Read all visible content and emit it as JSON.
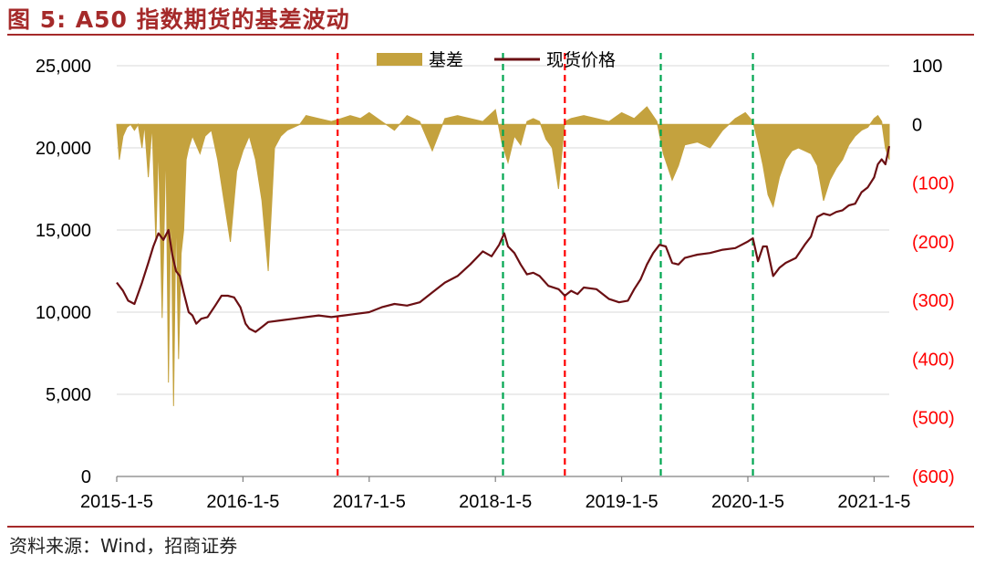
{
  "header": {
    "title": "图 5:  A50 指数期货的基差波动"
  },
  "footer": {
    "source": "资料来源：Wind，招商证券"
  },
  "chart_data": {
    "type": "line",
    "legend": [
      {
        "name": "基差",
        "kind": "area",
        "color": "#C4A23E"
      },
      {
        "name": "现货价格",
        "kind": "line",
        "color": "#6B0F13"
      }
    ],
    "legend_position": "top-center",
    "y_left": {
      "ylim": [
        0,
        25000
      ],
      "ticks": [
        "25,000",
        "20,000",
        "15,000",
        "10,000",
        "5,000",
        "0"
      ],
      "tick_values": [
        25000,
        20000,
        15000,
        10000,
        5000,
        0
      ],
      "color": "#000000"
    },
    "y_right": {
      "ylim": [
        -600,
        100
      ],
      "ticks": [
        "100",
        "0",
        "(100)",
        "(200)",
        "(300)",
        "(400)",
        "(500)",
        "(600)"
      ],
      "tick_values": [
        100,
        0,
        -100,
        -200,
        -300,
        -400,
        -500,
        -600
      ],
      "negative_color": "#FF0000"
    },
    "x_axis": {
      "ticks": [
        "2015-1-5",
        "2016-1-5",
        "2017-1-5",
        "2018-1-5",
        "2019-1-5",
        "2020-1-5",
        "2021-1-5"
      ],
      "tick_values": [
        2015.0,
        2016.0,
        2017.0,
        2018.0,
        2019.0,
        2020.0,
        2021.0
      ],
      "range": [
        2015.0,
        2021.12
      ]
    },
    "grid": "horizontal",
    "vlines": [
      {
        "x": 2016.75,
        "color": "#FF0000"
      },
      {
        "x": 2018.06,
        "color": "#00A651"
      },
      {
        "x": 2018.55,
        "color": "#FF0000"
      },
      {
        "x": 2019.31,
        "color": "#00A651"
      },
      {
        "x": 2020.04,
        "color": "#00A651"
      }
    ],
    "series": [
      {
        "name": "现货价格",
        "axis": "left",
        "x": [
          2015.0,
          2015.05,
          2015.09,
          2015.14,
          2015.2,
          2015.25,
          2015.29,
          2015.33,
          2015.37,
          2015.41,
          2015.44,
          2015.47,
          2015.5,
          2015.53,
          2015.57,
          2015.6,
          2015.63,
          2015.67,
          2015.72,
          2015.78,
          2015.83,
          2015.88,
          2015.93,
          2015.98,
          2016.02,
          2016.05,
          2016.1,
          2016.15,
          2016.2,
          2016.3,
          2016.4,
          2016.5,
          2016.6,
          2016.7,
          2016.8,
          2016.9,
          2017.0,
          2017.1,
          2017.2,
          2017.3,
          2017.4,
          2017.5,
          2017.6,
          2017.7,
          2017.8,
          2017.9,
          2017.97,
          2018.03,
          2018.07,
          2018.1,
          2018.15,
          2018.2,
          2018.25,
          2018.3,
          2018.35,
          2018.42,
          2018.5,
          2018.55,
          2018.6,
          2018.65,
          2018.7,
          2018.8,
          2018.9,
          2018.98,
          2019.05,
          2019.1,
          2019.15,
          2019.2,
          2019.25,
          2019.3,
          2019.35,
          2019.4,
          2019.45,
          2019.5,
          2019.6,
          2019.7,
          2019.8,
          2019.9,
          2020.0,
          2020.04,
          2020.08,
          2020.12,
          2020.15,
          2020.2,
          2020.25,
          2020.3,
          2020.38,
          2020.45,
          2020.5,
          2020.55,
          2020.6,
          2020.65,
          2020.7,
          2020.75,
          2020.8,
          2020.85,
          2020.9,
          2020.95,
          2021.0,
          2021.03,
          2021.06,
          2021.09,
          2021.12
        ],
        "values": [
          11800,
          11300,
          10700,
          10500,
          11800,
          13000,
          14000,
          14800,
          14400,
          15000,
          13500,
          12500,
          12200,
          11200,
          10000,
          9800,
          9300,
          9600,
          9700,
          10400,
          11000,
          11000,
          10900,
          10300,
          9300,
          9000,
          8800,
          9100,
          9400,
          9500,
          9600,
          9700,
          9800,
          9700,
          9800,
          9900,
          10000,
          10300,
          10500,
          10400,
          10600,
          11200,
          11800,
          12200,
          12900,
          13700,
          13400,
          14100,
          14800,
          14000,
          13600,
          12900,
          12300,
          12400,
          12200,
          11600,
          11400,
          11000,
          11300,
          11100,
          11500,
          11400,
          10800,
          10600,
          10700,
          11400,
          12000,
          12900,
          13600,
          14100,
          14000,
          13000,
          12900,
          13300,
          13500,
          13600,
          13800,
          13900,
          14300,
          14500,
          13100,
          14000,
          14000,
          12200,
          12700,
          13000,
          13300,
          14100,
          14600,
          15800,
          16000,
          15900,
          16100,
          16200,
          16500,
          16600,
          17300,
          17600,
          18200,
          19000,
          19300,
          19000,
          20100
        ]
      },
      {
        "name": "基差",
        "axis": "right",
        "x": [
          2015.0,
          2015.02,
          2015.05,
          2015.08,
          2015.11,
          2015.14,
          2015.17,
          2015.2,
          2015.22,
          2015.25,
          2015.28,
          2015.31,
          2015.33,
          2015.36,
          2015.39,
          2015.41,
          2015.43,
          2015.45,
          2015.47,
          2015.49,
          2015.51,
          2015.53,
          2015.55,
          2015.57,
          2015.6,
          2015.63,
          2015.66,
          2015.7,
          2015.75,
          2015.8,
          2015.85,
          2015.9,
          2015.95,
          2016.0,
          2016.05,
          2016.1,
          2016.15,
          2016.2,
          2016.25,
          2016.3,
          2016.35,
          2016.4,
          2016.45,
          2016.5,
          2016.6,
          2016.7,
          2016.78,
          2016.85,
          2016.93,
          2017.0,
          2017.1,
          2017.2,
          2017.3,
          2017.4,
          2017.5,
          2017.6,
          2017.7,
          2017.8,
          2017.9,
          2017.95,
          2018.0,
          2018.05,
          2018.1,
          2018.15,
          2018.2,
          2018.25,
          2018.3,
          2018.35,
          2018.4,
          2018.45,
          2018.5,
          2018.55,
          2018.6,
          2018.7,
          2018.8,
          2018.9,
          2019.0,
          2019.1,
          2019.2,
          2019.28,
          2019.33,
          2019.4,
          2019.45,
          2019.5,
          2019.6,
          2019.7,
          2019.8,
          2019.9,
          2019.98,
          2020.04,
          2020.08,
          2020.12,
          2020.16,
          2020.2,
          2020.25,
          2020.3,
          2020.35,
          2020.4,
          2020.45,
          2020.5,
          2020.55,
          2020.6,
          2020.65,
          2020.7,
          2020.75,
          2020.8,
          2020.85,
          2020.9,
          2020.95,
          2021.0,
          2021.03,
          2021.06,
          2021.09,
          2021.12
        ],
        "values": [
          0,
          -60,
          -20,
          -5,
          0,
          -10,
          0,
          -40,
          0,
          -90,
          0,
          -200,
          -30,
          -330,
          -30,
          -440,
          -120,
          -480,
          -140,
          -400,
          -220,
          -180,
          -60,
          -40,
          -20,
          -35,
          -50,
          -20,
          -10,
          -60,
          -130,
          -200,
          -80,
          -45,
          -20,
          -60,
          -130,
          -250,
          -40,
          -20,
          -10,
          -5,
          0,
          15,
          10,
          5,
          10,
          15,
          10,
          20,
          5,
          -10,
          15,
          5,
          -45,
          10,
          15,
          10,
          5,
          15,
          25,
          -30,
          -65,
          -20,
          -35,
          5,
          10,
          5,
          -25,
          -40,
          -110,
          5,
          10,
          15,
          10,
          5,
          20,
          10,
          30,
          5,
          -50,
          -95,
          -70,
          -35,
          -30,
          -40,
          -10,
          10,
          20,
          5,
          -30,
          -70,
          -120,
          -140,
          -90,
          -60,
          -45,
          -40,
          -45,
          -50,
          -70,
          -130,
          -95,
          -75,
          -60,
          -35,
          -20,
          -10,
          -5,
          10,
          15,
          5,
          -40,
          -60
        ]
      }
    ]
  }
}
